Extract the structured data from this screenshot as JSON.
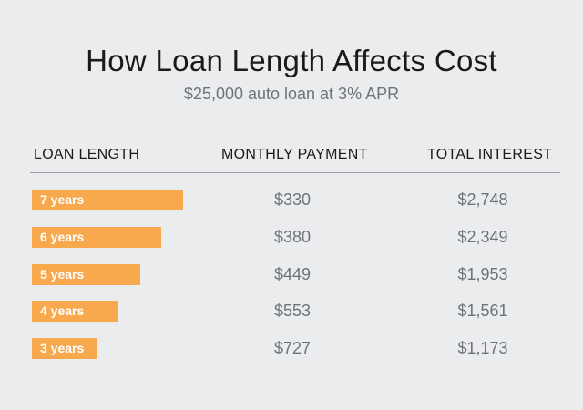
{
  "chart_data": {
    "type": "table",
    "title": "How Loan Length Affects Cost",
    "subtitle": "$25,000 auto loan at 3% APR",
    "columns": [
      "LOAN LENGTH",
      "MONTHLY PAYMENT",
      "TOTAL INTEREST"
    ],
    "rows": [
      {
        "loan_length": "7 years",
        "years": 7,
        "monthly_payment": "$330",
        "total_interest": "$2,748"
      },
      {
        "loan_length": "6 years",
        "years": 6,
        "monthly_payment": "$380",
        "total_interest": "$2,349"
      },
      {
        "loan_length": "5 years",
        "years": 5,
        "monthly_payment": "$449",
        "total_interest": "$1,953"
      },
      {
        "loan_length": "4 years",
        "years": 4,
        "monthly_payment": "$553",
        "total_interest": "$1,561"
      },
      {
        "loan_length": "3 years",
        "years": 3,
        "monthly_payment": "$727",
        "total_interest": "$1,173"
      }
    ],
    "bar_color": "#f8a94e",
    "grid": false
  }
}
